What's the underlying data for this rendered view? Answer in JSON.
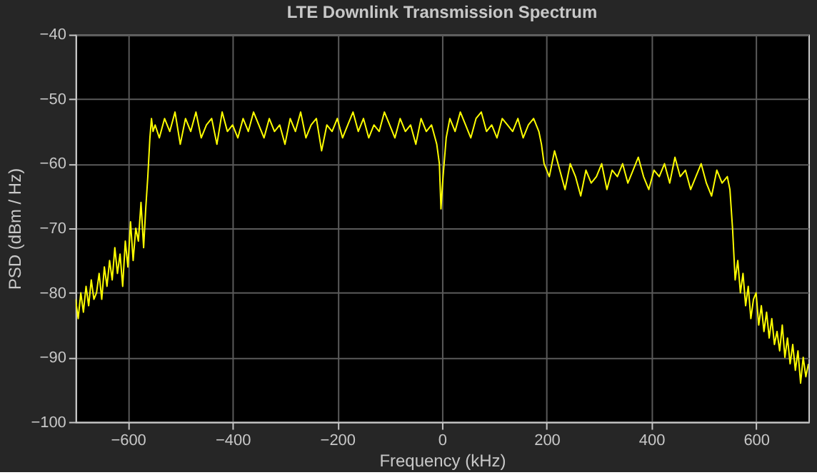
{
  "chart_data": {
    "type": "line",
    "title": "LTE Downlink Transmission Spectrum",
    "xlabel": "Frequency (kHz)",
    "ylabel": "PSD (dBm / Hz)",
    "xlim": [
      -700,
      700
    ],
    "xticks": [
      -600,
      -400,
      -200,
      0,
      200,
      400,
      600
    ],
    "ylim": [
      -100,
      -40
    ],
    "yticks": [
      -100,
      -90,
      -80,
      -70,
      -60,
      -50,
      -40
    ],
    "grid": true,
    "marker": "none",
    "line_style": "solid",
    "series": [
      {
        "color": "#ffff00",
        "x": [
          -700,
          -695,
          -690,
          -685,
          -680,
          -675,
          -670,
          -665,
          -660,
          -655,
          -650,
          -645,
          -640,
          -635,
          -630,
          -625,
          -620,
          -615,
          -610,
          -605,
          -600,
          -595,
          -590,
          -585,
          -580,
          -575,
          -570,
          -566,
          -562,
          -558,
          -555,
          -552,
          -548,
          -540,
          -530,
          -520,
          -510,
          -500,
          -490,
          -480,
          -470,
          -460,
          -450,
          -440,
          -430,
          -420,
          -410,
          -400,
          -390,
          -380,
          -370,
          -360,
          -350,
          -340,
          -330,
          -320,
          -310,
          -300,
          -290,
          -280,
          -270,
          -260,
          -250,
          -240,
          -230,
          -220,
          -210,
          -200,
          -190,
          -180,
          -170,
          -160,
          -150,
          -140,
          -130,
          -120,
          -110,
          -100,
          -90,
          -80,
          -70,
          -60,
          -50,
          -40,
          -30,
          -20,
          -10,
          -5,
          -2,
          2,
          8,
          15,
          25,
          35,
          45,
          55,
          65,
          75,
          85,
          95,
          105,
          115,
          125,
          135,
          145,
          155,
          165,
          175,
          185,
          190,
          195,
          205,
          215,
          225,
          235,
          245,
          255,
          265,
          275,
          285,
          295,
          305,
          315,
          325,
          335,
          345,
          355,
          365,
          375,
          385,
          395,
          405,
          415,
          425,
          435,
          445,
          455,
          465,
          475,
          485,
          495,
          505,
          515,
          525,
          535,
          545,
          550,
          555,
          560,
          565,
          570,
          575,
          580,
          585,
          590,
          595,
          600,
          605,
          610,
          615,
          620,
          625,
          630,
          635,
          640,
          645,
          650,
          655,
          660,
          665,
          670,
          675,
          680,
          685,
          690,
          695,
          700
        ],
        "values": [
          -81,
          -84,
          -80,
          -83,
          -79,
          -82,
          -78,
          -81,
          -80,
          -77,
          -81,
          -76,
          -79,
          -75,
          -78,
          -73,
          -77,
          -74,
          -79,
          -72,
          -76,
          -69,
          -75,
          -70,
          -72,
          -66,
          -73,
          -67,
          -62,
          -56,
          -53,
          -55,
          -54,
          -56,
          -53,
          -55,
          -52,
          -57,
          -53,
          -55,
          -52,
          -56,
          -54,
          -53,
          -57,
          -52,
          -55,
          -54,
          -56,
          -53,
          -55,
          -52,
          -54,
          -56,
          -53,
          -55,
          -54,
          -57,
          -53,
          -55,
          -52,
          -56,
          -54,
          -53,
          -58,
          -54,
          -55,
          -53,
          -56,
          -54,
          -52,
          -55,
          -53,
          -56,
          -54,
          -55,
          -52,
          -54,
          -56,
          -53,
          -55,
          -54,
          -57,
          -53,
          -55,
          -54,
          -57,
          -60,
          -67,
          -62,
          -56,
          -53,
          -55,
          -52,
          -54,
          -56,
          -53,
          -52,
          -55,
          -54,
          -56,
          -53,
          -54,
          -55,
          -53,
          -56,
          -54,
          -53,
          -55,
          -57,
          -60,
          -62,
          -58,
          -61,
          -64,
          -60,
          -62,
          -65,
          -61,
          -63,
          -62,
          -60,
          -64,
          -61,
          -62,
          -60,
          -63,
          -61,
          -59,
          -62,
          -64,
          -61,
          -62,
          -60,
          -63,
          -59,
          -62,
          -61,
          -64,
          -62,
          -60,
          -63,
          -65,
          -61,
          -63,
          -62,
          -64,
          -70,
          -78,
          -75,
          -80,
          -77,
          -82,
          -79,
          -84,
          -81,
          -80,
          -85,
          -82,
          -86,
          -83,
          -87,
          -84,
          -88,
          -86,
          -89,
          -85,
          -90,
          -87,
          -91,
          -88,
          -92,
          -89,
          -94,
          -90,
          -93,
          -91
        ]
      }
    ]
  }
}
